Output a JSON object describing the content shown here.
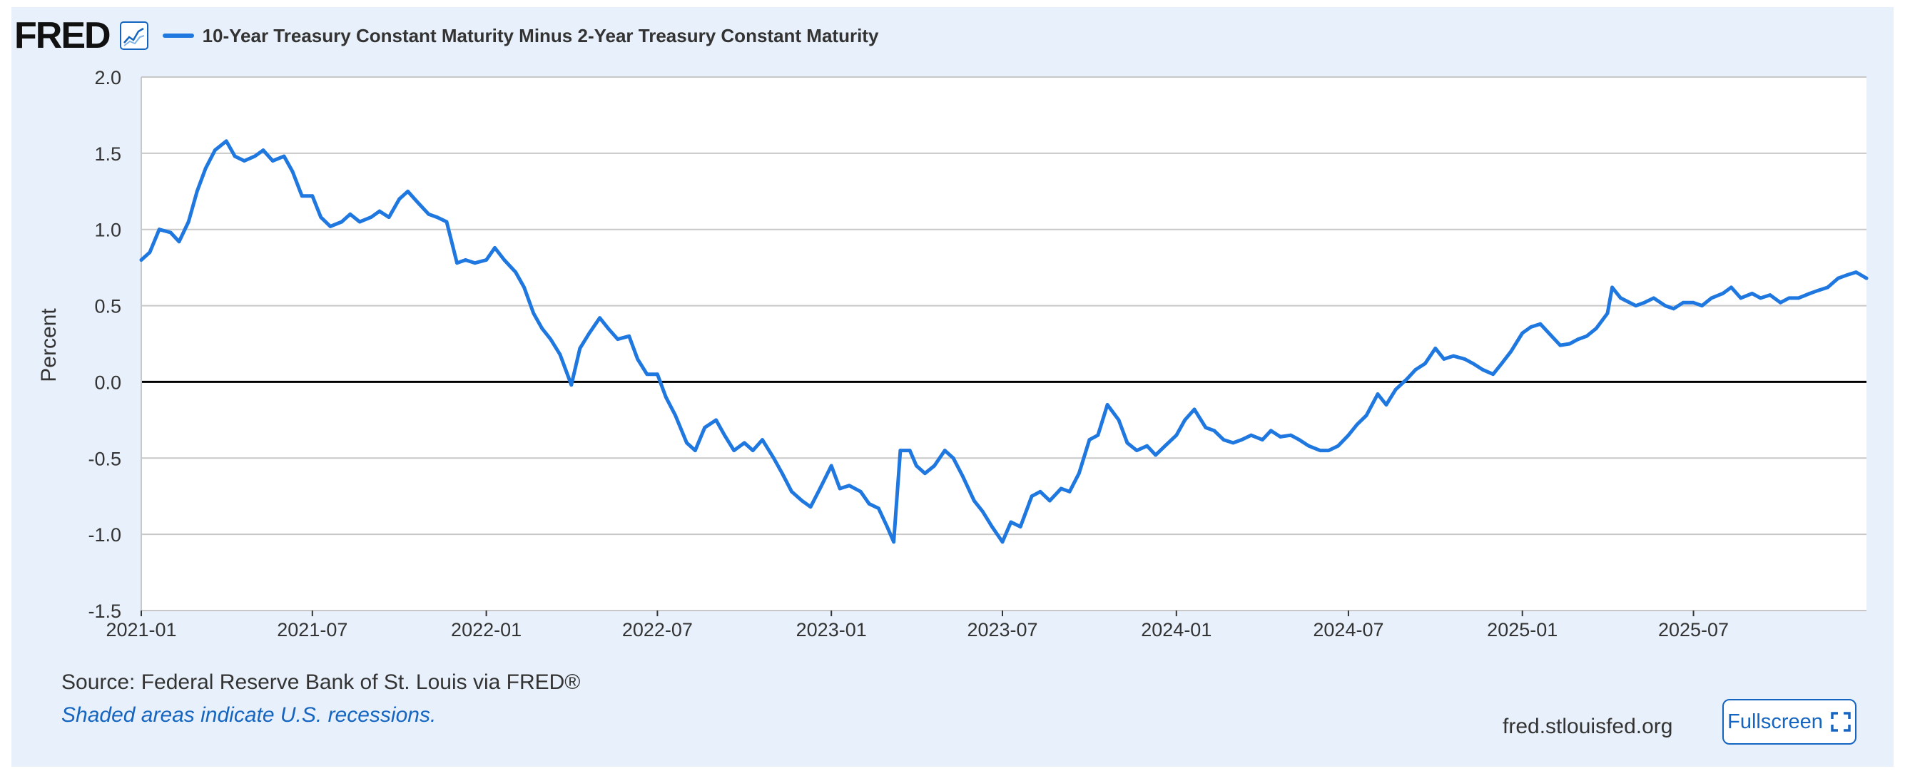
{
  "header": {
    "logo_text": "FRED",
    "series_title": "10-Year Treasury Constant Maturity Minus 2-Year Treasury Constant Maturity"
  },
  "footer": {
    "source": "Source: Federal Reserve Bank of St. Louis via FRED®",
    "recession_note": "Shaded areas indicate U.S. recessions.",
    "site": "fred.stlouisfed.org",
    "fullscreen_label": "Fullscreen"
  },
  "icons": {
    "graph": "line-graph-icon",
    "fullscreen": "fullscreen-icon"
  },
  "colors": {
    "series": "#1f77e0",
    "background": "#e8f1fb",
    "link": "#1565c0"
  },
  "chart_data": {
    "type": "line",
    "title": "10-Year Treasury Constant Maturity Minus 2-Year Treasury Constant Maturity",
    "xlabel": "",
    "ylabel": "Percent",
    "ylim": [
      -1.5,
      2.0
    ],
    "yticks": [
      "2.0",
      "1.5",
      "1.0",
      "0.5",
      "0.0",
      "-0.5",
      "-1.0",
      "-1.5"
    ],
    "ytick_values": [
      2.0,
      1.5,
      1.0,
      0.5,
      0.0,
      -0.5,
      -1.0,
      -1.5
    ],
    "xlim": [
      "2021-01-01",
      "2025-12-31"
    ],
    "xticks": [
      "2021-01",
      "2021-07",
      "2022-01",
      "2022-07",
      "2023-01",
      "2023-07",
      "2024-01",
      "2024-07",
      "2025-01",
      "2025-07"
    ],
    "grid": true,
    "zero_line": true,
    "legend": "top-left",
    "series": [
      {
        "name": "10-Year Treasury Constant Maturity Minus 2-Year Treasury Constant Maturity",
        "color": "#1f77e0",
        "points": [
          [
            "2021-01-01",
            0.8
          ],
          [
            "2021-01-10",
            0.85
          ],
          [
            "2021-01-20",
            1.0
          ],
          [
            "2021-02-01",
            0.98
          ],
          [
            "2021-02-10",
            0.92
          ],
          [
            "2021-02-20",
            1.05
          ],
          [
            "2021-03-01",
            1.25
          ],
          [
            "2021-03-10",
            1.4
          ],
          [
            "2021-03-20",
            1.52
          ],
          [
            "2021-04-01",
            1.58
          ],
          [
            "2021-04-10",
            1.48
          ],
          [
            "2021-04-20",
            1.45
          ],
          [
            "2021-05-01",
            1.48
          ],
          [
            "2021-05-10",
            1.52
          ],
          [
            "2021-05-20",
            1.45
          ],
          [
            "2021-06-01",
            1.48
          ],
          [
            "2021-06-10",
            1.38
          ],
          [
            "2021-06-20",
            1.22
          ],
          [
            "2021-07-01",
            1.22
          ],
          [
            "2021-07-10",
            1.08
          ],
          [
            "2021-07-20",
            1.02
          ],
          [
            "2021-08-01",
            1.05
          ],
          [
            "2021-08-10",
            1.1
          ],
          [
            "2021-08-20",
            1.05
          ],
          [
            "2021-09-01",
            1.08
          ],
          [
            "2021-09-10",
            1.12
          ],
          [
            "2021-09-20",
            1.08
          ],
          [
            "2021-10-01",
            1.2
          ],
          [
            "2021-10-10",
            1.25
          ],
          [
            "2021-10-20",
            1.18
          ],
          [
            "2021-11-01",
            1.1
          ],
          [
            "2021-11-10",
            1.08
          ],
          [
            "2021-11-20",
            1.05
          ],
          [
            "2021-12-01",
            0.78
          ],
          [
            "2021-12-10",
            0.8
          ],
          [
            "2021-12-20",
            0.78
          ],
          [
            "2022-01-01",
            0.8
          ],
          [
            "2022-01-10",
            0.88
          ],
          [
            "2022-01-20",
            0.8
          ],
          [
            "2022-02-01",
            0.72
          ],
          [
            "2022-02-10",
            0.62
          ],
          [
            "2022-02-20",
            0.45
          ],
          [
            "2022-03-01",
            0.35
          ],
          [
            "2022-03-10",
            0.28
          ],
          [
            "2022-03-20",
            0.18
          ],
          [
            "2022-04-01",
            -0.02
          ],
          [
            "2022-04-10",
            0.22
          ],
          [
            "2022-04-20",
            0.32
          ],
          [
            "2022-05-01",
            0.42
          ],
          [
            "2022-05-10",
            0.35
          ],
          [
            "2022-05-20",
            0.28
          ],
          [
            "2022-06-01",
            0.3
          ],
          [
            "2022-06-10",
            0.15
          ],
          [
            "2022-06-20",
            0.05
          ],
          [
            "2022-07-01",
            0.05
          ],
          [
            "2022-07-10",
            -0.1
          ],
          [
            "2022-07-20",
            -0.22
          ],
          [
            "2022-08-01",
            -0.4
          ],
          [
            "2022-08-10",
            -0.45
          ],
          [
            "2022-08-20",
            -0.3
          ],
          [
            "2022-09-01",
            -0.25
          ],
          [
            "2022-09-10",
            -0.35
          ],
          [
            "2022-09-20",
            -0.45
          ],
          [
            "2022-10-01",
            -0.4
          ],
          [
            "2022-10-10",
            -0.45
          ],
          [
            "2022-10-20",
            -0.38
          ],
          [
            "2022-11-01",
            -0.5
          ],
          [
            "2022-11-10",
            -0.6
          ],
          [
            "2022-11-20",
            -0.72
          ],
          [
            "2022-12-01",
            -0.78
          ],
          [
            "2022-12-10",
            -0.82
          ],
          [
            "2022-12-20",
            -0.7
          ],
          [
            "2023-01-01",
            -0.55
          ],
          [
            "2023-01-10",
            -0.7
          ],
          [
            "2023-01-20",
            -0.68
          ],
          [
            "2023-02-01",
            -0.72
          ],
          [
            "2023-02-10",
            -0.8
          ],
          [
            "2023-02-20",
            -0.83
          ],
          [
            "2023-03-01",
            -0.95
          ],
          [
            "2023-03-08",
            -1.05
          ],
          [
            "2023-03-15",
            -0.45
          ],
          [
            "2023-03-25",
            -0.45
          ],
          [
            "2023-04-01",
            -0.55
          ],
          [
            "2023-04-10",
            -0.6
          ],
          [
            "2023-04-20",
            -0.55
          ],
          [
            "2023-05-01",
            -0.45
          ],
          [
            "2023-05-10",
            -0.5
          ],
          [
            "2023-05-20",
            -0.62
          ],
          [
            "2023-06-01",
            -0.78
          ],
          [
            "2023-06-10",
            -0.85
          ],
          [
            "2023-06-20",
            -0.95
          ],
          [
            "2023-07-01",
            -1.05
          ],
          [
            "2023-07-10",
            -0.92
          ],
          [
            "2023-07-20",
            -0.95
          ],
          [
            "2023-08-01",
            -0.75
          ],
          [
            "2023-08-10",
            -0.72
          ],
          [
            "2023-08-20",
            -0.78
          ],
          [
            "2023-09-01",
            -0.7
          ],
          [
            "2023-09-10",
            -0.72
          ],
          [
            "2023-09-20",
            -0.6
          ],
          [
            "2023-10-01",
            -0.38
          ],
          [
            "2023-10-10",
            -0.35
          ],
          [
            "2023-10-20",
            -0.15
          ],
          [
            "2023-11-01",
            -0.25
          ],
          [
            "2023-11-10",
            -0.4
          ],
          [
            "2023-11-20",
            -0.45
          ],
          [
            "2023-12-01",
            -0.42
          ],
          [
            "2023-12-10",
            -0.48
          ],
          [
            "2023-12-20",
            -0.42
          ],
          [
            "2024-01-01",
            -0.35
          ],
          [
            "2024-01-10",
            -0.25
          ],
          [
            "2024-01-20",
            -0.18
          ],
          [
            "2024-02-01",
            -0.3
          ],
          [
            "2024-02-10",
            -0.32
          ],
          [
            "2024-02-20",
            -0.38
          ],
          [
            "2024-03-01",
            -0.4
          ],
          [
            "2024-03-10",
            -0.38
          ],
          [
            "2024-03-20",
            -0.35
          ],
          [
            "2024-04-01",
            -0.38
          ],
          [
            "2024-04-10",
            -0.32
          ],
          [
            "2024-04-20",
            -0.36
          ],
          [
            "2024-05-01",
            -0.35
          ],
          [
            "2024-05-10",
            -0.38
          ],
          [
            "2024-05-20",
            -0.42
          ],
          [
            "2024-06-01",
            -0.45
          ],
          [
            "2024-06-10",
            -0.45
          ],
          [
            "2024-06-20",
            -0.42
          ],
          [
            "2024-07-01",
            -0.35
          ],
          [
            "2024-07-10",
            -0.28
          ],
          [
            "2024-07-20",
            -0.22
          ],
          [
            "2024-08-01",
            -0.08
          ],
          [
            "2024-08-10",
            -0.15
          ],
          [
            "2024-08-20",
            -0.05
          ],
          [
            "2024-09-01",
            0.02
          ],
          [
            "2024-09-10",
            0.08
          ],
          [
            "2024-09-20",
            0.12
          ],
          [
            "2024-10-01",
            0.22
          ],
          [
            "2024-10-10",
            0.15
          ],
          [
            "2024-10-20",
            0.17
          ],
          [
            "2024-11-01",
            0.15
          ],
          [
            "2024-11-10",
            0.12
          ],
          [
            "2024-11-20",
            0.08
          ],
          [
            "2024-12-01",
            0.05
          ],
          [
            "2024-12-10",
            0.12
          ],
          [
            "2024-12-20",
            0.2
          ],
          [
            "2025-01-01",
            0.32
          ],
          [
            "2025-01-10",
            0.36
          ],
          [
            "2025-01-20",
            0.38
          ],
          [
            "2025-02-01",
            0.3
          ],
          [
            "2025-02-10",
            0.24
          ],
          [
            "2025-02-20",
            0.25
          ],
          [
            "2025-03-01",
            0.28
          ],
          [
            "2025-03-10",
            0.3
          ],
          [
            "2025-03-20",
            0.35
          ],
          [
            "2025-04-01",
            0.45
          ],
          [
            "2025-04-06",
            0.62
          ],
          [
            "2025-04-15",
            0.55
          ],
          [
            "2025-05-01",
            0.5
          ],
          [
            "2025-05-10",
            0.52
          ],
          [
            "2025-05-20",
            0.55
          ],
          [
            "2025-06-01",
            0.5
          ],
          [
            "2025-06-10",
            0.48
          ],
          [
            "2025-06-20",
            0.52
          ],
          [
            "2025-07-01",
            0.52
          ],
          [
            "2025-07-10",
            0.5
          ],
          [
            "2025-07-20",
            0.55
          ],
          [
            "2025-08-01",
            0.58
          ],
          [
            "2025-08-10",
            0.62
          ],
          [
            "2025-08-20",
            0.55
          ],
          [
            "2025-09-01",
            0.58
          ],
          [
            "2025-09-10",
            0.55
          ],
          [
            "2025-09-20",
            0.57
          ],
          [
            "2025-10-01",
            0.52
          ],
          [
            "2025-10-10",
            0.55
          ],
          [
            "2025-10-20",
            0.55
          ],
          [
            "2025-11-01",
            0.58
          ],
          [
            "2025-11-10",
            0.6
          ],
          [
            "2025-11-20",
            0.62
          ],
          [
            "2025-12-01",
            0.68
          ],
          [
            "2025-12-10",
            0.7
          ],
          [
            "2025-12-20",
            0.72
          ],
          [
            "2025-12-31",
            0.68
          ]
        ]
      }
    ]
  }
}
